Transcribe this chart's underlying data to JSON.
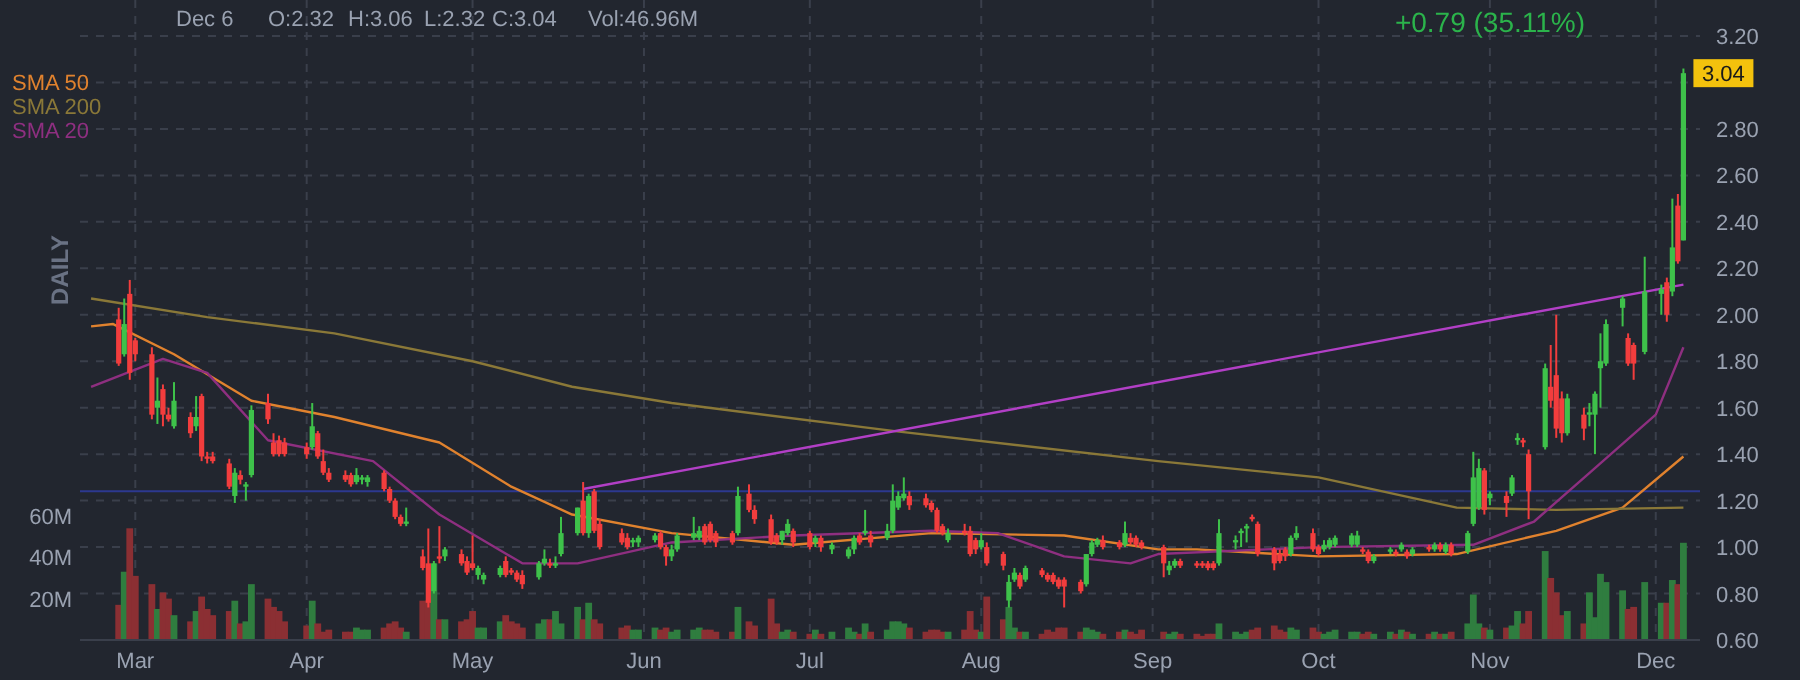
{
  "chart_data": {
    "type": "candlestick",
    "annotations": [
      "DAILY",
      "Dec 6",
      "O:2.32",
      "H:3.06",
      "L:2.32",
      "C:3.04",
      "Vol:46.96M",
      "+0.79 (35.11%)",
      {
        "text": "3.04",
        "x": "--12-06",
        "y": 3.04
      }
    ],
    "x": [
      "--02-27",
      "--02-28",
      "--02-29",
      "--03-01",
      "--03-04",
      "--03-05",
      "--03-06",
      "--03-07",
      "--03-08",
      "--03-11",
      "--03-12",
      "--03-13",
      "--03-14",
      "--03-15",
      "--03-18",
      "--03-19",
      "--03-20",
      "--03-21",
      "--03-22",
      "--03-25",
      "--03-26",
      "--03-27",
      "--03-28",
      "--04-01",
      "--04-02",
      "--04-03",
      "--04-04",
      "--04-05",
      "--04-08",
      "--04-09",
      "--04-10",
      "--04-11",
      "--04-12",
      "--04-15",
      "--04-16",
      "--04-17",
      "--04-18",
      "--04-19",
      "--04-22",
      "--04-23",
      "--04-24",
      "--04-25",
      "--04-26",
      "--04-29",
      "--04-30",
      "--05-01",
      "--05-02",
      "--05-03",
      "--05-06",
      "--05-07",
      "--05-08",
      "--05-09",
      "--05-10",
      "--05-13",
      "--05-14",
      "--05-15",
      "--05-16",
      "--05-17",
      "--05-20",
      "--05-21",
      "--05-22",
      "--05-23",
      "--05-24",
      "--05-28",
      "--05-29",
      "--05-30",
      "--05-31",
      "--06-03",
      "--06-04",
      "--06-05",
      "--06-06",
      "--06-07",
      "--06-10",
      "--06-11",
      "--06-12",
      "--06-13",
      "--06-14",
      "--06-17",
      "--06-18",
      "--06-20",
      "--06-21",
      "--06-24",
      "--06-25",
      "--06-26",
      "--06-27",
      "--06-28",
      "--07-01",
      "--07-02",
      "--07-03",
      "--07-05",
      "--07-08",
      "--07-09",
      "--07-10",
      "--07-11",
      "--07-12",
      "--07-15",
      "--07-16",
      "--07-17",
      "--07-18",
      "--07-19",
      "--07-22",
      "--07-23",
      "--07-24",
      "--07-25",
      "--07-26",
      "--07-29",
      "--07-30",
      "--07-31",
      "--08-01",
      "--08-02",
      "--08-05",
      "--08-06",
      "--08-07",
      "--08-08",
      "--08-09",
      "--08-12",
      "--08-13",
      "--08-14",
      "--08-15",
      "--08-16",
      "--08-19",
      "--08-20",
      "--08-21",
      "--08-22",
      "--08-23",
      "--08-26",
      "--08-27",
      "--08-28",
      "--08-29",
      "--08-30",
      "--09-03",
      "--09-04",
      "--09-05",
      "--09-06",
      "--09-09",
      "--09-10",
      "--09-11",
      "--09-12",
      "--09-13",
      "--09-16",
      "--09-17",
      "--09-18",
      "--09-19",
      "--09-20",
      "--09-23",
      "--09-24",
      "--09-25",
      "--09-26",
      "--09-27",
      "--09-30",
      "--10-01",
      "--10-02",
      "--10-03",
      "--10-04",
      "--10-07",
      "--10-08",
      "--10-09",
      "--10-10",
      "--10-11",
      "--10-14",
      "--10-15",
      "--10-16",
      "--10-17",
      "--10-18",
      "--10-21",
      "--10-22",
      "--10-23",
      "--10-24",
      "--10-25",
      "--10-28",
      "--10-29",
      "--10-30",
      "--10-31",
      "--11-01",
      "--11-04",
      "--11-05",
      "--11-06",
      "--11-07",
      "--11-08",
      "--11-11",
      "--11-12",
      "--11-13",
      "--11-14",
      "--11-15",
      "--11-18",
      "--11-19",
      "--11-20",
      "--11-21",
      "--11-22",
      "--11-25",
      "--11-26",
      "--11-27",
      "--11-29",
      "--12-02",
      "--12-03",
      "--12-04",
      "--12-05",
      "--12-06"
    ],
    "ohlc": [
      [
        1.98,
        2.03,
        1.78,
        1.79
      ],
      [
        1.83,
        2.07,
        1.82,
        1.96
      ],
      [
        2.09,
        2.15,
        1.72,
        1.75
      ],
      [
        1.89,
        1.9,
        1.8,
        1.83
      ],
      [
        1.83,
        1.86,
        1.55,
        1.57
      ],
      [
        1.6,
        1.73,
        1.53,
        1.63
      ],
      [
        1.68,
        1.7,
        1.52,
        1.57
      ],
      [
        1.57,
        1.6,
        1.54,
        1.55
      ],
      [
        1.52,
        1.71,
        1.51,
        1.63
      ],
      [
        1.56,
        1.58,
        1.47,
        1.49
      ],
      [
        1.52,
        1.65,
        1.5,
        1.56
      ],
      [
        1.65,
        1.66,
        1.37,
        1.39
      ],
      [
        1.39,
        1.41,
        1.36,
        1.38
      ],
      [
        1.39,
        1.41,
        1.36,
        1.37
      ],
      [
        1.36,
        1.38,
        1.25,
        1.26
      ],
      [
        1.22,
        1.34,
        1.19,
        1.32
      ],
      [
        1.31,
        1.33,
        1.27,
        1.29
      ],
      [
        1.26,
        1.28,
        1.2,
        1.27
      ],
      [
        1.31,
        1.61,
        1.3,
        1.59
      ],
      [
        1.62,
        1.66,
        1.53,
        1.55
      ],
      [
        1.45,
        1.49,
        1.39,
        1.4
      ],
      [
        1.46,
        1.48,
        1.39,
        1.4
      ],
      [
        1.45,
        1.47,
        1.39,
        1.4
      ],
      [
        1.43,
        1.45,
        1.38,
        1.4
      ],
      [
        1.43,
        1.62,
        1.42,
        1.52
      ],
      [
        1.49,
        1.5,
        1.38,
        1.39
      ],
      [
        1.37,
        1.42,
        1.31,
        1.32
      ],
      [
        1.32,
        1.34,
        1.28,
        1.29
      ],
      [
        1.31,
        1.33,
        1.28,
        1.29
      ],
      [
        1.31,
        1.32,
        1.26,
        1.27
      ],
      [
        1.28,
        1.34,
        1.27,
        1.31
      ],
      [
        1.29,
        1.31,
        1.27,
        1.3
      ],
      [
        1.28,
        1.31,
        1.26,
        1.3
      ],
      [
        1.32,
        1.33,
        1.24,
        1.25
      ],
      [
        1.25,
        1.26,
        1.19,
        1.2
      ],
      [
        1.2,
        1.21,
        1.12,
        1.13
      ],
      [
        1.13,
        1.14,
        1.09,
        1.1
      ],
      [
        1.1,
        1.17,
        1.09,
        1.11
      ],
      [
        0.96,
        0.99,
        0.9,
        0.91
      ],
      [
        0.93,
        1.08,
        0.74,
        0.76
      ],
      [
        0.81,
        0.94,
        0.8,
        0.93
      ],
      [
        0.96,
        1.09,
        0.93,
        0.95
      ],
      [
        0.96,
        1,
        0.94,
        0.99
      ],
      [
        0.97,
        0.99,
        0.92,
        0.93
      ],
      [
        0.94,
        0.96,
        0.88,
        0.89
      ],
      [
        0.93,
        1.05,
        0.9,
        0.91
      ],
      [
        0.88,
        0.92,
        0.86,
        0.91
      ],
      [
        0.86,
        0.89,
        0.84,
        0.88
      ],
      [
        0.88,
        0.92,
        0.87,
        0.91
      ],
      [
        0.94,
        0.96,
        0.87,
        0.88
      ],
      [
        0.9,
        0.91,
        0.88,
        0.89
      ],
      [
        0.89,
        0.9,
        0.85,
        0.86
      ],
      [
        0.88,
        0.9,
        0.82,
        0.84
      ],
      [
        0.87,
        0.94,
        0.86,
        0.93
      ],
      [
        0.93,
        0.99,
        0.92,
        0.95
      ],
      [
        0.93,
        0.95,
        0.91,
        0.92
      ],
      [
        0.92,
        0.96,
        0.91,
        0.93
      ],
      [
        0.97,
        1.13,
        0.96,
        1.06
      ],
      [
        1.06,
        1.17,
        1.05,
        1.17
      ],
      [
        1.2,
        1.28,
        1.05,
        1.06
      ],
      [
        1.06,
        1.23,
        1.04,
        1.22
      ],
      [
        1.24,
        1.25,
        1.06,
        1.07
      ],
      [
        1.1,
        1.12,
        0.99,
        1
      ],
      [
        1.06,
        1.08,
        1.01,
        1.02
      ],
      [
        1.04,
        1.06,
        0.99,
        1
      ],
      [
        1.02,
        1.04,
        1,
        1.03
      ],
      [
        1.02,
        1.05,
        1,
        1.04
      ],
      [
        1.03,
        1.06,
        1.02,
        1.05
      ],
      [
        1.06,
        1.07,
        0.99,
        1
      ],
      [
        1,
        1.01,
        0.92,
        0.96
      ],
      [
        0.96,
        1.01,
        0.94,
        0.99
      ],
      [
        0.99,
        1.06,
        0.98,
        1.05
      ],
      [
        1.04,
        1.13,
        1.03,
        1.06
      ],
      [
        1.04,
        1.09,
        1.03,
        1.07
      ],
      [
        1.09,
        1.1,
        1.01,
        1.02
      ],
      [
        1.1,
        1.11,
        1.02,
        1.03
      ],
      [
        1.06,
        1.07,
        1,
        1.02
      ],
      [
        1.06,
        1.07,
        1.01,
        1.02
      ],
      [
        1.06,
        1.26,
        1.05,
        1.22
      ],
      [
        1.23,
        1.27,
        1.15,
        1.16
      ],
      [
        1.16,
        1.18,
        1.1,
        1.12
      ],
      [
        1.12,
        1.14,
        1.01,
        1.02
      ],
      [
        1.05,
        1.06,
        1.01,
        1.02
      ],
      [
        1.03,
        1.07,
        1.01,
        1.07
      ],
      [
        1.06,
        1.12,
        1.05,
        1.1
      ],
      [
        1.07,
        1.08,
        1,
        1.02
      ],
      [
        1.06,
        1.07,
        0.99,
        1
      ],
      [
        1.02,
        1.05,
        1,
        1.04
      ],
      [
        1.04,
        1.05,
        0.98,
        1
      ],
      [
        0.99,
        1.02,
        0.97,
        1.01
      ],
      [
        0.96,
        1,
        0.95,
        0.99
      ],
      [
        0.99,
        1.05,
        0.97,
        1.04
      ],
      [
        1.05,
        1.06,
        1.01,
        1.02
      ],
      [
        1.06,
        1.16,
        1.05,
        1.07
      ],
      [
        1.05,
        1.07,
        1,
        1.02
      ],
      [
        1.04,
        1.1,
        1.03,
        1.07
      ],
      [
        1.07,
        1.27,
        1.06,
        1.2
      ],
      [
        1.17,
        1.24,
        1.16,
        1.22
      ],
      [
        1.21,
        1.3,
        1.2,
        1.23
      ],
      [
        1.22,
        1.24,
        1.16,
        1.18
      ],
      [
        1.21,
        1.23,
        1.17,
        1.18
      ],
      [
        1.19,
        1.2,
        1.15,
        1.16
      ],
      [
        1.16,
        1.17,
        1.06,
        1.07
      ],
      [
        1.09,
        1.1,
        1.05,
        1.06
      ],
      [
        1.03,
        1.08,
        1.02,
        1.06
      ],
      [
        1.07,
        1.1,
        1.05,
        1.06
      ],
      [
        1.07,
        1.09,
        0.96,
        0.97
      ],
      [
        1.03,
        1.04,
        0.97,
        0.99
      ],
      [
        1,
        1.06,
        0.99,
        1.03
      ],
      [
        1,
        1.02,
        0.92,
        0.93
      ],
      [
        0.97,
        0.98,
        0.9,
        0.92
      ],
      [
        0.77,
        0.88,
        0.74,
        0.85
      ],
      [
        0.86,
        0.91,
        0.85,
        0.89
      ],
      [
        0.88,
        0.89,
        0.82,
        0.83
      ],
      [
        0.86,
        0.92,
        0.85,
        0.91
      ],
      [
        0.9,
        0.91,
        0.87,
        0.88
      ],
      [
        0.88,
        0.89,
        0.85,
        0.86
      ],
      [
        0.88,
        0.89,
        0.84,
        0.85
      ],
      [
        0.86,
        0.87,
        0.82,
        0.83
      ],
      [
        0.86,
        0.87,
        0.74,
        0.83
      ],
      [
        0.85,
        0.86,
        0.8,
        0.81
      ],
      [
        0.84,
        0.97,
        0.83,
        0.97
      ],
      [
        0.97,
        1.03,
        0.96,
        1.02
      ],
      [
        1.01,
        1.04,
        1,
        1.03
      ],
      [
        1.03,
        1.05,
        0.99,
        1
      ],
      [
        1.02,
        1.03,
        0.99,
        1
      ],
      [
        1.01,
        1.11,
        1,
        1.06
      ],
      [
        1.04,
        1.06,
        1.01,
        1.02
      ],
      [
        1.04,
        1.05,
        1,
        1.01
      ],
      [
        1.02,
        1.03,
        0.99,
        1
      ],
      [
        1,
        1.01,
        0.87,
        0.93
      ],
      [
        0.9,
        0.94,
        0.88,
        0.92
      ],
      [
        0.92,
        0.95,
        0.91,
        0.94
      ],
      [
        0.94,
        0.95,
        0.91,
        0.92
      ],
      [
        0.93,
        0.94,
        0.91,
        0.92
      ],
      [
        0.93,
        0.94,
        0.91,
        0.92
      ],
      [
        0.93,
        0.94,
        0.9,
        0.91
      ],
      [
        0.93,
        0.94,
        0.9,
        0.91
      ],
      [
        0.93,
        1.12,
        0.92,
        1.06
      ],
      [
        1.02,
        1.05,
        0.99,
        1.03
      ],
      [
        1.06,
        1.08,
        1,
        1.07
      ],
      [
        1.08,
        1.1,
        1.02,
        1.09
      ],
      [
        1.13,
        1.14,
        1.11,
        1.12
      ],
      [
        1.1,
        1.11,
        0.96,
        0.97
      ],
      [
        0.99,
        1,
        0.9,
        0.93
      ],
      [
        0.97,
        0.99,
        0.93,
        0.94
      ],
      [
        0.99,
        1,
        0.94,
        0.96
      ],
      [
        0.97,
        1.05,
        0.96,
        1.04
      ],
      [
        1.04,
        1.09,
        1.03,
        1.06
      ],
      [
        1.06,
        1.08,
        0.98,
        0.99
      ],
      [
        1,
        1.01,
        0.96,
        0.97
      ],
      [
        0.99,
        1.03,
        0.98,
        1.01
      ],
      [
        1,
        1.04,
        0.99,
        1.03
      ],
      [
        1.01,
        1.05,
        1,
        1.04
      ],
      [
        1.01,
        1.06,
        1,
        1.05
      ],
      [
        1.01,
        1.07,
        1,
        1.05
      ],
      [
        0.99,
        1,
        0.97,
        0.98
      ],
      [
        0.98,
        0.99,
        0.93,
        0.94
      ],
      [
        0.94,
        0.97,
        0.93,
        0.96
      ],
      [
        0.98,
        1,
        0.97,
        0.99
      ],
      [
        0.98,
        0.99,
        0.96,
        0.97
      ],
      [
        0.99,
        1.02,
        0.98,
        1.01
      ],
      [
        0.98,
        0.99,
        0.95,
        0.96
      ],
      [
        0.97,
        1,
        0.96,
        0.99
      ],
      [
        1,
        1.01,
        0.98,
        0.99
      ],
      [
        0.99,
        1.02,
        0.98,
        1.01
      ],
      [
        1.01,
        1.02,
        0.98,
        0.99
      ],
      [
        0.98,
        1.02,
        0.97,
        1.01
      ],
      [
        1.01,
        1.02,
        0.96,
        0.97
      ],
      [
        0.98,
        1.07,
        0.97,
        1.06
      ],
      [
        1.1,
        1.41,
        1.09,
        1.3
      ],
      [
        1.17,
        1.38,
        1.16,
        1.34
      ],
      [
        1.33,
        1.34,
        1.14,
        1.16
      ],
      [
        1.21,
        1.24,
        1.18,
        1.23
      ],
      [
        1.22,
        1.24,
        1.13,
        1.19
      ],
      [
        1.23,
        1.31,
        1.22,
        1.3
      ],
      [
        1.46,
        1.49,
        1.44,
        1.47
      ],
      [
        1.46,
        1.47,
        1.43,
        1.45
      ],
      [
        1.4,
        1.42,
        1.12,
        1.24
      ],
      [
        1.43,
        1.79,
        1.42,
        1.77
      ],
      [
        1.69,
        1.87,
        1.6,
        1.63
      ],
      [
        1.74,
        2,
        1.47,
        1.51
      ],
      [
        1.64,
        1.67,
        1.45,
        1.49
      ],
      [
        1.49,
        1.66,
        1.48,
        1.64
      ],
      [
        1.57,
        1.6,
        1.46,
        1.51
      ],
      [
        1.57,
        1.62,
        1.52,
        1.58
      ],
      [
        1.57,
        1.67,
        1.4,
        1.66
      ],
      [
        1.77,
        1.92,
        1.6,
        1.8
      ],
      [
        1.79,
        1.98,
        1.78,
        1.96
      ],
      [
        2.03,
        2.08,
        1.95,
        2.07
      ],
      [
        1.9,
        1.92,
        1.78,
        1.79
      ],
      [
        1.87,
        1.88,
        1.72,
        1.79
      ],
      [
        1.84,
        2.25,
        1.83,
        2.1
      ],
      [
        2.09,
        2.13,
        2,
        2.11
      ],
      [
        2.14,
        2.16,
        1.97,
        2
      ],
      [
        2.1,
        2.5,
        2.08,
        2.29
      ],
      [
        2.47,
        2.52,
        2.22,
        2.23
      ],
      [
        2.32,
        3.06,
        2.32,
        3.04
      ]
    ],
    "colors": [
      "#f23d3d",
      "#3ec14a",
      "#f23d3d",
      "#f23d3d",
      "#f23d3d",
      "#3ec14a",
      "#f23d3d",
      "#f23d3d",
      "#3ec14a",
      "#f23d3d",
      "#3ec14a",
      "#f23d3d",
      "#f23d3d",
      "#f23d3d",
      "#f23d3d",
      "#3ec14a",
      "#f23d3d",
      "#3ec14a",
      "#3ec14a",
      "#f23d3d",
      "#f23d3d",
      "#f23d3d",
      "#f23d3d",
      "#f23d3d",
      "#3ec14a",
      "#f23d3d",
      "#f23d3d",
      "#f23d3d",
      "#f23d3d",
      "#f23d3d",
      "#3ec14a",
      "#3ec14a",
      "#3ec14a",
      "#f23d3d",
      "#f23d3d",
      "#f23d3d",
      "#f23d3d",
      "#3ec14a",
      "#f23d3d",
      "#f23d3d",
      "#3ec14a",
      "#f23d3d",
      "#3ec14a",
      "#f23d3d",
      "#f23d3d",
      "#f23d3d",
      "#3ec14a",
      "#3ec14a",
      "#3ec14a",
      "#f23d3d",
      "#f23d3d",
      "#f23d3d",
      "#f23d3d",
      "#3ec14a",
      "#3ec14a",
      "#f23d3d",
      "#3ec14a",
      "#3ec14a",
      "#3ec14a",
      "#f23d3d",
      "#3ec14a",
      "#f23d3d",
      "#f23d3d",
      "#f23d3d",
      "#f23d3d",
      "#3ec14a",
      "#3ec14a",
      "#3ec14a",
      "#f23d3d",
      "#f23d3d",
      "#3ec14a",
      "#3ec14a",
      "#3ec14a",
      "#3ec14a",
      "#f23d3d",
      "#f23d3d",
      "#f23d3d",
      "#f23d3d",
      "#3ec14a",
      "#f23d3d",
      "#f23d3d",
      "#f23d3d",
      "#f23d3d",
      "#3ec14a",
      "#3ec14a",
      "#f23d3d",
      "#f23d3d",
      "#3ec14a",
      "#f23d3d",
      "#3ec14a",
      "#3ec14a",
      "#3ec14a",
      "#f23d3d",
      "#3ec14a",
      "#f23d3d",
      "#3ec14a",
      "#3ec14a",
      "#3ec14a",
      "#3ec14a",
      "#f23d3d",
      "#f23d3d",
      "#f23d3d",
      "#f23d3d",
      "#f23d3d",
      "#3ec14a",
      "#f23d3d",
      "#f23d3d",
      "#f23d3d",
      "#3ec14a",
      "#f23d3d",
      "#f23d3d",
      "#3ec14a",
      "#3ec14a",
      "#f23d3d",
      "#3ec14a",
      "#f23d3d",
      "#f23d3d",
      "#f23d3d",
      "#f23d3d",
      "#f23d3d",
      "#f23d3d",
      "#3ec14a",
      "#3ec14a",
      "#3ec14a",
      "#f23d3d",
      "#f23d3d",
      "#3ec14a",
      "#f23d3d",
      "#f23d3d",
      "#f23d3d",
      "#f23d3d",
      "#3ec14a",
      "#3ec14a",
      "#f23d3d",
      "#f23d3d",
      "#f23d3d",
      "#f23d3d",
      "#f23d3d",
      "#3ec14a",
      "#3ec14a",
      "#3ec14a",
      "#3ec14a",
      "#f23d3d",
      "#f23d3d",
      "#f23d3d",
      "#f23d3d",
      "#f23d3d",
      "#3ec14a",
      "#3ec14a",
      "#f23d3d",
      "#f23d3d",
      "#3ec14a",
      "#3ec14a",
      "#3ec14a",
      "#3ec14a",
      "#3ec14a",
      "#f23d3d",
      "#f23d3d",
      "#3ec14a",
      "#3ec14a",
      "#f23d3d",
      "#3ec14a",
      "#f23d3d",
      "#3ec14a",
      "#f23d3d",
      "#3ec14a",
      "#f23d3d",
      "#3ec14a",
      "#f23d3d",
      "#3ec14a",
      "#3ec14a",
      "#3ec14a",
      "#f23d3d",
      "#3ec14a",
      "#f23d3d",
      "#3ec14a",
      "#3ec14a",
      "#f23d3d",
      "#f23d3d",
      "#3ec14a",
      "#f23d3d",
      "#f23d3d",
      "#f23d3d",
      "#3ec14a",
      "#f23d3d",
      "#3ec14a",
      "#3ec14a",
      "#3ec14a",
      "#3ec14a",
      "#3ec14a",
      "#f23d3d",
      "#f23d3d",
      "#3ec14a",
      "#3ec14a",
      "#f23d3d",
      "#3ec14a",
      "#f23d3d",
      "#3ec14a"
    ],
    "series": [
      {
        "type": "bar",
        "axis": "y2",
        "values": [
          17,
          33,
          54,
          31,
          27,
          15,
          23,
          20,
          12,
          9,
          14,
          21,
          15,
          12,
          14,
          19,
          8,
          9,
          27,
          20,
          16,
          14,
          9,
          7,
          19,
          8,
          4,
          5,
          4,
          4,
          6,
          5,
          5,
          6,
          8,
          9,
          6,
          4,
          19,
          19,
          37,
          10,
          10,
          9,
          10,
          14,
          6,
          6,
          9,
          12,
          9,
          8,
          6,
          8,
          10,
          10,
          14,
          8,
          16,
          10,
          18,
          10,
          8,
          6,
          7,
          5,
          5,
          6,
          5,
          6,
          4,
          5,
          5,
          6,
          5,
          5,
          4,
          4,
          16,
          9,
          7,
          20,
          8,
          4,
          5,
          4,
          3,
          5,
          3,
          4,
          6,
          4,
          3,
          8,
          4,
          5,
          9,
          9,
          8,
          6,
          4,
          5,
          5,
          4,
          4,
          5,
          14,
          5,
          4,
          21,
          10,
          16,
          6,
          4,
          4,
          3,
          5,
          4,
          6,
          6,
          4,
          6,
          5,
          4,
          3,
          4,
          5,
          4,
          3,
          5,
          4,
          3,
          4,
          3,
          3,
          2,
          3,
          3,
          8,
          4,
          3,
          4,
          5,
          6,
          7,
          5,
          4,
          6,
          5,
          6,
          4,
          3,
          4,
          5,
          4,
          4,
          3,
          4,
          3,
          4,
          3,
          5,
          4,
          3,
          3,
          4,
          3,
          3,
          4,
          8,
          22,
          8,
          6,
          5,
          6,
          7,
          14,
          8,
          14,
          43,
          30,
          23,
          12,
          14,
          8,
          23,
          11,
          32,
          28,
          24,
          15,
          16,
          28,
          18,
          18,
          29,
          27,
          47
        ],
        "colors": [
          "#8b2f33",
          "#2f7d3f",
          "#8b2f33",
          "#8b2f33",
          "#8b2f33",
          "#2f7d3f",
          "#8b2f33",
          "#8b2f33",
          "#2f7d3f",
          "#8b2f33",
          "#2f7d3f",
          "#8b2f33",
          "#8b2f33",
          "#8b2f33",
          "#8b2f33",
          "#2f7d3f",
          "#8b2f33",
          "#2f7d3f",
          "#2f7d3f",
          "#8b2f33",
          "#8b2f33",
          "#8b2f33",
          "#8b2f33",
          "#8b2f33",
          "#2f7d3f",
          "#8b2f33",
          "#8b2f33",
          "#8b2f33",
          "#8b2f33",
          "#8b2f33",
          "#2f7d3f",
          "#2f7d3f",
          "#2f7d3f",
          "#8b2f33",
          "#8b2f33",
          "#8b2f33",
          "#8b2f33",
          "#2f7d3f",
          "#8b2f33",
          "#8b2f33",
          "#2f7d3f",
          "#8b2f33",
          "#2f7d3f",
          "#8b2f33",
          "#8b2f33",
          "#8b2f33",
          "#2f7d3f",
          "#2f7d3f",
          "#2f7d3f",
          "#8b2f33",
          "#8b2f33",
          "#8b2f33",
          "#8b2f33",
          "#2f7d3f",
          "#2f7d3f",
          "#8b2f33",
          "#2f7d3f",
          "#2f7d3f",
          "#2f7d3f",
          "#8b2f33",
          "#2f7d3f",
          "#8b2f33",
          "#8b2f33",
          "#8b2f33",
          "#8b2f33",
          "#2f7d3f",
          "#2f7d3f",
          "#2f7d3f",
          "#8b2f33",
          "#8b2f33",
          "#2f7d3f",
          "#2f7d3f",
          "#2f7d3f",
          "#2f7d3f",
          "#8b2f33",
          "#8b2f33",
          "#8b2f33",
          "#8b2f33",
          "#2f7d3f",
          "#8b2f33",
          "#8b2f33",
          "#8b2f33",
          "#8b2f33",
          "#2f7d3f",
          "#2f7d3f",
          "#8b2f33",
          "#8b2f33",
          "#2f7d3f",
          "#8b2f33",
          "#2f7d3f",
          "#2f7d3f",
          "#2f7d3f",
          "#8b2f33",
          "#2f7d3f",
          "#8b2f33",
          "#2f7d3f",
          "#2f7d3f",
          "#2f7d3f",
          "#2f7d3f",
          "#8b2f33",
          "#8b2f33",
          "#8b2f33",
          "#8b2f33",
          "#8b2f33",
          "#2f7d3f",
          "#8b2f33",
          "#8b2f33",
          "#8b2f33",
          "#2f7d3f",
          "#8b2f33",
          "#8b2f33",
          "#2f7d3f",
          "#2f7d3f",
          "#8b2f33",
          "#2f7d3f",
          "#8b2f33",
          "#8b2f33",
          "#8b2f33",
          "#8b2f33",
          "#8b2f33",
          "#8b2f33",
          "#2f7d3f",
          "#2f7d3f",
          "#2f7d3f",
          "#8b2f33",
          "#8b2f33",
          "#2f7d3f",
          "#8b2f33",
          "#8b2f33",
          "#8b2f33",
          "#8b2f33",
          "#2f7d3f",
          "#2f7d3f",
          "#8b2f33",
          "#8b2f33",
          "#8b2f33",
          "#8b2f33",
          "#8b2f33",
          "#2f7d3f",
          "#2f7d3f",
          "#2f7d3f",
          "#2f7d3f",
          "#8b2f33",
          "#8b2f33",
          "#8b2f33",
          "#8b2f33",
          "#8b2f33",
          "#2f7d3f",
          "#2f7d3f",
          "#8b2f33",
          "#8b2f33",
          "#2f7d3f",
          "#2f7d3f",
          "#2f7d3f",
          "#2f7d3f",
          "#2f7d3f",
          "#8b2f33",
          "#8b2f33",
          "#2f7d3f",
          "#2f7d3f",
          "#8b2f33",
          "#2f7d3f",
          "#8b2f33",
          "#2f7d3f",
          "#8b2f33",
          "#2f7d3f",
          "#8b2f33",
          "#2f7d3f",
          "#8b2f33",
          "#2f7d3f",
          "#2f7d3f",
          "#2f7d3f",
          "#8b2f33",
          "#2f7d3f",
          "#8b2f33",
          "#2f7d3f",
          "#2f7d3f",
          "#8b2f33",
          "#8b2f33",
          "#2f7d3f",
          "#8b2f33",
          "#8b2f33",
          "#8b2f33",
          "#2f7d3f",
          "#8b2f33",
          "#2f7d3f",
          "#2f7d3f",
          "#2f7d3f",
          "#2f7d3f",
          "#2f7d3f",
          "#8b2f33",
          "#8b2f33",
          "#2f7d3f",
          "#2f7d3f",
          "#8b2f33",
          "#2f7d3f",
          "#8b2f33",
          "#2f7d3f"
        ]
      },
      {
        "type": "line",
        "name": "SMA 50",
        "color": "#e0822e",
        "x": [
          "--02-22",
          "--02-26",
          "--03-08",
          "--03-22",
          "--04-06",
          "--04-25",
          "--05-08",
          "--05-19",
          "--06-06",
          "--06-28",
          "--07-23",
          "--08-16",
          "--09-02",
          "--09-09",
          "--10-01",
          "--10-26",
          "--11-13",
          "--11-25",
          "--12-06"
        ],
        "values": [
          1.95,
          1.96,
          1.83,
          1.63,
          1.56,
          1.45,
          1.26,
          1.14,
          1.06,
          1.01,
          1.06,
          1.05,
          0.99,
          0.99,
          0.96,
          0.97,
          1.07,
          1.17,
          1.39
        ]
      },
      {
        "type": "line",
        "name": "SMA 200",
        "color": "#8a7838",
        "x": [
          "--02-22",
          "--03-14",
          "--04-06",
          "--05-01",
          "--05-19",
          "--06-06",
          "--07-16",
          "--09-02",
          "--10-01",
          "--10-26",
          "--11-13",
          "--12-06"
        ],
        "values": [
          2.07,
          1.99,
          1.92,
          1.8,
          1.69,
          1.62,
          1.5,
          1.37,
          1.3,
          1.17,
          1.16,
          1.17
        ]
      },
      {
        "type": "line",
        "name": "SMA 20",
        "color": "#8e2f80",
        "x": [
          "--02-22",
          "--03-06",
          "--03-14",
          "--03-25",
          "--04-13",
          "--04-25",
          "--05-10",
          "--05-20",
          "--06-06",
          "--06-28",
          "--07-23",
          "--08-04",
          "--08-16",
          "--08-28",
          "--09-02",
          "--10-01",
          "--10-29",
          "--11-09",
          "--11-20",
          "--12-01",
          "--12-06"
        ],
        "values": [
          1.69,
          1.81,
          1.75,
          1.46,
          1.37,
          1.14,
          0.93,
          0.93,
          1.02,
          1.05,
          1.07,
          1.06,
          0.96,
          0.93,
          0.97,
          1,
          1.01,
          1.11,
          1.34,
          1.57,
          1.86
        ]
      },
      {
        "type": "line",
        "color": "#b23fc6",
        "x": [
          "--05-21",
          "--12-06"
        ],
        "values": [
          1.25,
          2.13
        ]
      }
    ],
    "ref_lines": [
      {
        "axis": "y",
        "value": 1.24,
        "color": "#2c3890"
      }
    ],
    "xlim": [
      "--02-20",
      "--12-09"
    ],
    "xticks": [
      {
        "value": "--03-01",
        "label": "Mar"
      },
      {
        "value": "--04-01",
        "label": "Apr"
      },
      {
        "value": "--05-01",
        "label": "May"
      },
      {
        "value": "--06-01",
        "label": "Jun"
      },
      {
        "value": "--07-01",
        "label": "Jul"
      },
      {
        "value": "--08-01",
        "label": "Aug"
      },
      {
        "value": "--09-01",
        "label": "Sep"
      },
      {
        "value": "--10-01",
        "label": "Oct"
      },
      {
        "value": "--11-01",
        "label": "Nov"
      },
      {
        "value": "--12-01",
        "label": "Dec"
      }
    ],
    "ylim": [
      0.6,
      3.2
    ],
    "yticks": [
      {
        "value": 0.6,
        "label": "0.60"
      },
      {
        "value": 0.8,
        "label": "0.80"
      },
      {
        "value": 1,
        "label": "1.00"
      },
      {
        "value": 1.2,
        "label": "1.20"
      },
      {
        "value": 1.4,
        "label": "1.40"
      },
      {
        "value": 1.6,
        "label": "1.60"
      },
      {
        "value": 1.8,
        "label": "1.80"
      },
      {
        "value": 2,
        "label": "2.00"
      },
      {
        "value": 2.2,
        "label": "2.20"
      },
      {
        "value": 2.4,
        "label": "2.40"
      },
      {
        "value": 2.6,
        "label": "2.60"
      },
      {
        "value": 2.8,
        "label": "2.80"
      },
      {
        "value": 3,
        "label": null
      },
      {
        "value": 3.2,
        "label": "3.20"
      }
    ],
    "y2lim": [
      0,
      292
    ],
    "y2ticks": [
      {
        "value": 20,
        "label": "20M"
      },
      {
        "value": 40,
        "label": "40M"
      },
      {
        "value": 60,
        "label": "60M"
      }
    ],
    "grid": true,
    "legend": "top left",
    "line_style": "solid",
    "marker": "none"
  }
}
